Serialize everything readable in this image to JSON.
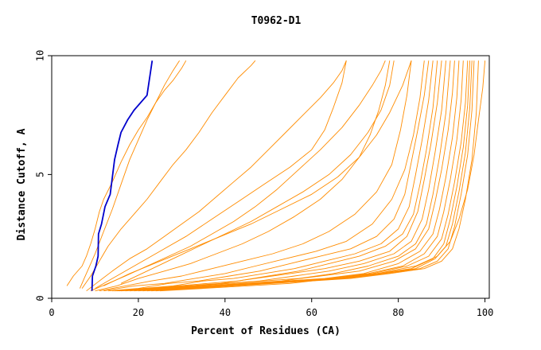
{
  "chart_data": {
    "type": "line",
    "title": "T0962-D1",
    "xlabel": "Percent of Residues (CA)",
    "ylabel": "Distance Cutoff, A",
    "xlim": [
      0,
      101
    ],
    "ylim": [
      0,
      9.8
    ],
    "xticks": [
      0,
      20,
      40,
      60,
      80,
      100
    ],
    "yticks": [
      0,
      5,
      10
    ],
    "grid": false,
    "colors": {
      "highlight": "#0000cc",
      "others": "#ff8c00",
      "axis": "#000000"
    },
    "series": [
      {
        "highlight": true,
        "x": [
          9.3,
          9.4,
          10.2,
          10.7,
          10.8,
          11.5,
          12.3,
          13.5,
          14.5,
          15.3,
          16.0,
          17.5,
          19.0,
          22.0,
          23.2
        ],
        "y": [
          0.3,
          0.9,
          1.3,
          1.7,
          2.6,
          3.0,
          3.7,
          4.2,
          5.6,
          6.2,
          6.7,
          7.2,
          7.6,
          8.2,
          9.6
        ]
      },
      {
        "x": [
          3.5,
          5,
          7,
          8,
          9,
          10,
          11,
          12,
          14,
          16,
          18,
          20,
          22,
          24,
          26,
          28,
          30,
          31
        ],
        "y": [
          0.5,
          0.9,
          1.3,
          1.7,
          2.2,
          2.8,
          3.5,
          4.0,
          4.7,
          5.5,
          6.2,
          6.8,
          7.3,
          7.9,
          8.4,
          8.8,
          9.3,
          9.6
        ]
      },
      {
        "x": [
          6.5,
          7.5,
          8.5,
          10,
          12,
          14,
          16,
          18,
          20,
          22,
          24,
          26,
          28,
          29.5
        ],
        "y": [
          0.4,
          0.8,
          1.2,
          1.8,
          2.7,
          3.6,
          4.6,
          5.6,
          6.4,
          7.2,
          7.9,
          8.6,
          9.2,
          9.6
        ]
      },
      {
        "x": [
          7,
          9,
          11,
          13,
          16,
          19,
          22,
          25,
          28,
          31,
          34,
          37,
          40,
          43,
          46,
          47
        ],
        "y": [
          0.4,
          0.9,
          1.5,
          2.1,
          2.8,
          3.4,
          4.0,
          4.7,
          5.4,
          6.0,
          6.7,
          7.5,
          8.2,
          8.9,
          9.4,
          9.6
        ]
      },
      {
        "x": [
          8,
          11,
          14,
          18,
          22,
          26,
          30,
          34,
          38,
          42,
          46,
          50,
          54,
          58,
          62,
          65,
          67,
          68
        ],
        "y": [
          0.3,
          0.7,
          1.1,
          1.6,
          2.0,
          2.5,
          3.0,
          3.5,
          4.1,
          4.7,
          5.3,
          6.0,
          6.7,
          7.4,
          8.1,
          8.7,
          9.2,
          9.6
        ]
      },
      {
        "x": [
          9,
          13,
          17,
          22,
          27,
          32,
          37,
          42,
          47,
          52,
          57,
          62,
          67,
          71,
          74,
          76,
          77
        ],
        "y": [
          0.3,
          0.6,
          0.9,
          1.3,
          1.7,
          2.1,
          2.6,
          3.1,
          3.7,
          4.4,
          5.2,
          6.0,
          6.9,
          7.8,
          8.6,
          9.2,
          9.6
        ]
      },
      {
        "x": [
          10,
          15,
          20,
          26,
          32,
          38,
          44,
          50,
          56,
          62,
          67,
          71,
          73.5,
          75.5,
          77,
          78
        ],
        "y": [
          0.3,
          0.5,
          0.8,
          1.1,
          1.4,
          1.8,
          2.2,
          2.7,
          3.3,
          4.0,
          4.8,
          5.7,
          6.6,
          7.6,
          8.6,
          9.6
        ]
      },
      {
        "x": [
          11,
          17,
          23,
          30,
          37,
          44,
          51,
          58,
          64,
          70,
          75,
          78.5,
          80.5,
          82,
          83
        ],
        "y": [
          0.3,
          0.5,
          0.7,
          0.9,
          1.2,
          1.5,
          1.8,
          2.2,
          2.7,
          3.4,
          4.3,
          5.4,
          6.8,
          8.2,
          9.6
        ]
      },
      {
        "x": [
          12,
          19,
          26,
          33,
          40,
          47,
          54,
          61,
          68,
          74,
          78.5,
          81.5,
          83.5,
          85,
          86
        ],
        "y": [
          0.3,
          0.5,
          0.6,
          0.8,
          1.0,
          1.3,
          1.6,
          1.9,
          2.3,
          3.0,
          4.0,
          5.2,
          6.6,
          8.1,
          9.6
        ]
      },
      {
        "x": [
          13,
          20,
          27,
          34,
          41,
          48,
          55,
          62,
          69,
          75,
          79,
          81.5,
          83,
          84.5,
          86,
          87
        ],
        "y": [
          0.3,
          0.4,
          0.6,
          0.7,
          0.9,
          1.1,
          1.4,
          1.7,
          2.0,
          2.5,
          3.2,
          4.2,
          5.5,
          6.8,
          8.2,
          9.6
        ]
      },
      {
        "x": [
          14,
          21,
          28,
          35,
          42,
          49,
          56,
          63,
          70,
          76,
          80,
          82.5,
          84,
          85.5,
          87,
          88
        ],
        "y": [
          0.3,
          0.4,
          0.5,
          0.7,
          0.8,
          1.0,
          1.2,
          1.5,
          1.8,
          2.2,
          2.8,
          3.7,
          5.0,
          6.4,
          8.0,
          9.6
        ]
      },
      {
        "x": [
          14.5,
          22,
          29,
          36,
          43,
          50,
          57,
          64,
          71,
          77,
          81,
          83.5,
          85,
          86.5,
          88,
          89
        ],
        "y": [
          0.3,
          0.4,
          0.5,
          0.6,
          0.7,
          0.9,
          1.1,
          1.4,
          1.7,
          2.1,
          2.6,
          3.4,
          4.6,
          6.0,
          7.7,
          9.6
        ]
      },
      {
        "x": [
          15,
          23,
          31,
          39,
          47,
          55,
          63,
          71,
          78,
          82,
          84.5,
          86,
          87.5,
          89,
          90
        ],
        "y": [
          0.3,
          0.4,
          0.5,
          0.6,
          0.8,
          1.0,
          1.2,
          1.5,
          1.9,
          2.5,
          3.5,
          4.8,
          6.2,
          7.9,
          9.6
        ]
      },
      {
        "x": [
          15.5,
          24,
          32,
          40,
          48,
          56,
          64,
          72,
          79,
          83,
          85.5,
          87,
          88.5,
          90,
          91
        ],
        "y": [
          0.3,
          0.4,
          0.5,
          0.6,
          0.7,
          0.9,
          1.1,
          1.4,
          1.8,
          2.3,
          3.2,
          4.4,
          5.9,
          7.6,
          9.6
        ]
      },
      {
        "x": [
          16,
          25,
          33,
          41,
          49,
          57,
          65,
          73,
          80,
          84,
          86.5,
          88,
          89.5,
          91,
          92
        ],
        "y": [
          0.3,
          0.4,
          0.5,
          0.6,
          0.7,
          0.8,
          1.0,
          1.3,
          1.7,
          2.2,
          3.0,
          4.2,
          5.7,
          7.5,
          9.6
        ]
      },
      {
        "x": [
          17,
          26,
          35,
          44,
          53,
          62,
          71,
          79,
          84,
          87,
          88.5,
          90,
          91.5,
          92.5,
          93
        ],
        "y": [
          0.3,
          0.4,
          0.5,
          0.6,
          0.7,
          0.9,
          1.1,
          1.5,
          2.0,
          2.8,
          3.9,
          5.2,
          6.8,
          8.3,
          9.6
        ]
      },
      {
        "x": [
          18,
          27,
          36,
          45,
          54,
          63,
          72,
          80,
          85,
          88,
          89.5,
          91,
          92.5,
          93.5,
          94
        ],
        "y": [
          0.3,
          0.4,
          0.5,
          0.6,
          0.7,
          0.8,
          1.0,
          1.4,
          1.9,
          2.6,
          3.6,
          4.9,
          6.5,
          8.1,
          9.6
        ]
      },
      {
        "x": [
          19,
          28,
          37,
          46,
          55,
          64,
          73,
          81,
          86,
          89,
          90.5,
          92,
          93.5,
          94.5,
          95
        ],
        "y": [
          0.3,
          0.4,
          0.5,
          0.6,
          0.7,
          0.8,
          1.0,
          1.3,
          1.8,
          2.5,
          3.5,
          4.8,
          6.4,
          8.0,
          9.6
        ]
      },
      {
        "x": [
          20,
          29,
          38,
          47,
          56,
          65,
          74,
          82,
          87,
          90,
          91.5,
          93,
          94.5,
          95.5,
          96
        ],
        "y": [
          0.3,
          0.4,
          0.5,
          0.6,
          0.7,
          0.8,
          1.0,
          1.3,
          1.7,
          2.4,
          3.4,
          4.7,
          6.3,
          7.9,
          9.6
        ]
      },
      {
        "x": [
          21,
          30,
          39,
          48,
          57,
          66,
          75,
          83,
          88,
          90.5,
          92,
          93.5,
          95,
          96,
          96.5
        ],
        "y": [
          0.3,
          0.4,
          0.5,
          0.6,
          0.7,
          0.8,
          1.0,
          1.2,
          1.6,
          2.2,
          3.2,
          4.5,
          6.1,
          7.8,
          9.6
        ]
      },
      {
        "x": [
          22,
          31,
          40,
          49,
          58,
          67,
          76,
          84,
          88.5,
          91,
          92.5,
          94,
          95.5,
          96.5,
          97
        ],
        "y": [
          0.3,
          0.4,
          0.5,
          0.6,
          0.7,
          0.8,
          1.0,
          1.2,
          1.6,
          2.1,
          3.0,
          4.3,
          5.9,
          7.7,
          9.6
        ]
      },
      {
        "x": [
          23,
          32,
          41,
          50,
          59,
          68,
          77,
          85,
          89,
          91.5,
          93,
          94.5,
          96,
          97,
          97.5
        ],
        "y": [
          0.3,
          0.4,
          0.5,
          0.6,
          0.7,
          0.8,
          1.0,
          1.2,
          1.5,
          2.0,
          2.9,
          4.2,
          5.8,
          7.6,
          9.6
        ]
      },
      {
        "x": [
          24,
          33,
          42,
          51,
          60,
          69,
          78,
          86,
          90,
          92.5,
          94,
          95.5,
          97,
          98,
          98.5
        ],
        "y": [
          0.3,
          0.4,
          0.5,
          0.6,
          0.7,
          0.8,
          1.0,
          1.2,
          1.5,
          2.0,
          2.8,
          4.0,
          5.6,
          7.5,
          9.6
        ]
      },
      {
        "x": [
          25,
          35,
          45,
          55,
          65,
          75,
          84,
          89,
          92,
          94,
          96,
          97.5,
          98.5,
          99.5,
          100
        ],
        "y": [
          0.3,
          0.4,
          0.5,
          0.6,
          0.8,
          1.0,
          1.3,
          1.7,
          2.3,
          3.2,
          4.4,
          5.8,
          7.2,
          8.5,
          9.6
        ]
      },
      {
        "x": [
          12,
          18,
          25,
          32,
          39,
          46,
          53,
          60,
          66,
          71,
          75,
          78,
          81,
          83
        ],
        "y": [
          0.5,
          1.0,
          1.5,
          2.0,
          2.5,
          3.0,
          3.6,
          4.2,
          4.9,
          5.7,
          6.6,
          7.5,
          8.6,
          9.6
        ]
      },
      {
        "x": [
          10,
          14,
          19,
          25,
          31,
          37,
          43,
          49,
          55,
          60,
          63,
          65,
          67,
          68
        ],
        "y": [
          0.4,
          0.8,
          1.3,
          1.9,
          2.5,
          3.2,
          3.9,
          4.6,
          5.3,
          6.0,
          6.8,
          7.7,
          8.7,
          9.6
        ]
      },
      {
        "x": [
          16,
          22,
          28,
          34,
          40,
          46,
          52,
          58,
          64,
          69,
          73,
          76,
          78,
          79
        ],
        "y": [
          0.6,
          1.1,
          1.6,
          2.1,
          2.6,
          3.1,
          3.7,
          4.3,
          5.0,
          5.8,
          6.7,
          7.6,
          8.6,
          9.6
        ]
      }
    ]
  }
}
